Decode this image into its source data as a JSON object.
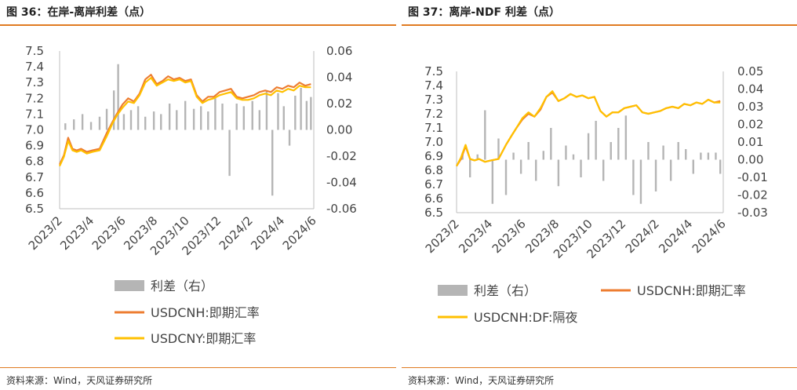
{
  "left": {
    "fig_title": "图 36：在岸-离岸利差（点）",
    "source": "资料来源：Wind，天风证券研究所",
    "legend": [
      "利差（右）",
      "USDCNH:即期汇率",
      "USDCNY:即期汇率"
    ]
  },
  "right": {
    "fig_title": "图 37：离岸-NDF 利差（点）",
    "source": "资料来源：Wind，天风证券研究所",
    "legend": [
      "利差（右）",
      "USDCNH:即期汇率",
      "USDCNH:DF:隔夜"
    ]
  },
  "colors": {
    "spread": "#b5b5b5",
    "series1": "#ed7d31",
    "series2": "#ffc000",
    "accent": "#e07b22"
  },
  "chart_data": [
    {
      "type": "line",
      "x_ticks": [
        "2023/2",
        "2023/4",
        "2023/6",
        "2023/8",
        "2023/10",
        "2023/12",
        "2024/2",
        "2024/4",
        "2024/6"
      ],
      "y_left_ticks": [
        "7.5",
        "7.4",
        "7.3",
        "7.2",
        "7.1",
        "7.0",
        "6.9",
        "6.8",
        "6.7",
        "6.6",
        "6.5"
      ],
      "y_right_ticks": [
        "0.06",
        "0.04",
        "0.02",
        "0.00",
        "-0.02",
        "-0.04",
        "-0.06"
      ],
      "ylim_left": [
        6.5,
        7.5
      ],
      "ylim_right": [
        -0.06,
        0.06
      ],
      "xlim": [
        0,
        17.8
      ],
      "series": [
        {
          "name": "利差（右）",
          "axis": "right",
          "kind": "bar",
          "x": [
            0.4,
            1.0,
            1.6,
            2.2,
            2.8,
            3.3,
            3.8,
            4.1,
            4.5,
            5.0,
            5.5,
            6.0,
            6.6,
            7.1,
            7.7,
            8.2,
            8.8,
            9.4,
            9.9,
            10.4,
            10.9,
            11.4,
            11.9,
            12.4,
            12.9,
            13.5,
            14.0,
            14.5,
            14.9,
            15.3,
            15.7,
            16.1,
            16.5,
            16.9,
            17.3,
            17.6
          ],
          "values": [
            0.005,
            0.008,
            0.012,
            0.006,
            0.01,
            0.016,
            0.03,
            0.05,
            0.012,
            0.015,
            0.018,
            0.01,
            0.014,
            0.012,
            0.02,
            0.015,
            0.022,
            0.016,
            0.018,
            0.014,
            0.025,
            0.02,
            -0.035,
            0.02,
            0.018,
            0.022,
            0.015,
            0.03,
            -0.05,
            0.028,
            0.018,
            -0.012,
            0.026,
            0.032,
            0.022,
            0.025
          ]
        },
        {
          "name": "USDCNH:即期汇率",
          "axis": "left",
          "x": [
            0,
            0.3,
            0.6,
            0.9,
            1.2,
            1.5,
            1.9,
            2.3,
            2.8,
            3.3,
            3.7,
            4.0,
            4.4,
            4.8,
            5.2,
            5.6,
            6.0,
            6.4,
            6.8,
            7.2,
            7.6,
            8.0,
            8.4,
            8.8,
            9.2,
            9.6,
            10.0,
            10.4,
            10.8,
            11.2,
            11.6,
            12.0,
            12.4,
            12.8,
            13.2,
            13.6,
            14.0,
            14.4,
            14.8,
            15.2,
            15.6,
            16.0,
            16.4,
            16.8,
            17.2,
            17.6
          ],
          "values": [
            6.78,
            6.84,
            6.95,
            6.88,
            6.87,
            6.88,
            6.86,
            6.87,
            6.88,
            6.98,
            7.05,
            7.1,
            7.16,
            7.2,
            7.18,
            7.23,
            7.32,
            7.35,
            7.29,
            7.31,
            7.34,
            7.32,
            7.33,
            7.31,
            7.32,
            7.22,
            7.18,
            7.21,
            7.21,
            7.24,
            7.25,
            7.26,
            7.21,
            7.2,
            7.21,
            7.22,
            7.24,
            7.25,
            7.24,
            7.27,
            7.26,
            7.28,
            7.27,
            7.3,
            7.28,
            7.29
          ]
        },
        {
          "name": "USDCNY:即期汇率",
          "axis": "left",
          "x": [
            0,
            0.3,
            0.6,
            0.9,
            1.2,
            1.5,
            1.9,
            2.3,
            2.8,
            3.3,
            3.7,
            4.0,
            4.4,
            4.8,
            5.2,
            5.6,
            6.0,
            6.4,
            6.8,
            7.2,
            7.6,
            8.0,
            8.4,
            8.8,
            9.2,
            9.6,
            10.0,
            10.4,
            10.8,
            11.2,
            11.6,
            12.0,
            12.4,
            12.8,
            13.2,
            13.6,
            14.0,
            14.4,
            14.8,
            15.2,
            15.6,
            16.0,
            16.4,
            16.8,
            17.2,
            17.6
          ],
          "values": [
            6.77,
            6.83,
            6.93,
            6.87,
            6.86,
            6.87,
            6.85,
            6.86,
            6.87,
            6.96,
            7.04,
            7.09,
            7.14,
            7.18,
            7.17,
            7.22,
            7.3,
            7.33,
            7.28,
            7.3,
            7.32,
            7.31,
            7.32,
            7.3,
            7.31,
            7.21,
            7.17,
            7.19,
            7.2,
            7.22,
            7.23,
            7.24,
            7.2,
            7.19,
            7.19,
            7.2,
            7.22,
            7.23,
            7.22,
            7.25,
            7.24,
            7.26,
            7.25,
            7.28,
            7.27,
            7.27
          ]
        }
      ]
    },
    {
      "type": "line",
      "x_ticks": [
        "2023/2",
        "2023/4",
        "2023/6",
        "2023/8",
        "2023/10",
        "2023/12",
        "2024/2",
        "2024/4",
        "2024/6"
      ],
      "y_left_ticks": [
        "7.5",
        "7.4",
        "7.3",
        "7.2",
        "7.1",
        "7.0",
        "6.9",
        "6.8",
        "6.7",
        "6.6",
        "6.5"
      ],
      "y_right_ticks": [
        "0.05",
        "0.04",
        "0.03",
        "0.02",
        "0.01",
        "0.00",
        "-0.01",
        "-0.02",
        "-0.03"
      ],
      "ylim_left": [
        6.5,
        7.5
      ],
      "ylim_right": [
        -0.03,
        0.05
      ],
      "xlim": [
        0,
        17.8
      ],
      "series": [
        {
          "name": "利差（右）",
          "axis": "right",
          "kind": "bar",
          "x": [
            0.4,
            0.9,
            1.4,
            1.9,
            2.4,
            2.8,
            3.3,
            3.8,
            4.3,
            4.8,
            5.3,
            5.8,
            6.3,
            6.8,
            7.3,
            7.8,
            8.3,
            8.8,
            9.3,
            9.8,
            10.3,
            10.8,
            11.3,
            11.8,
            12.3,
            12.8,
            13.3,
            13.8,
            14.3,
            14.8,
            15.3,
            15.8,
            16.3,
            16.8,
            17.3,
            17.6
          ],
          "values": [
            0.004,
            -0.01,
            0.003,
            0.028,
            -0.025,
            0.012,
            -0.02,
            0.004,
            -0.008,
            0.01,
            -0.012,
            0.005,
            0.018,
            -0.015,
            0.008,
            0.003,
            -0.01,
            0.015,
            0.022,
            -0.012,
            0.01,
            0.018,
            0.025,
            -0.02,
            -0.025,
            0.01,
            -0.018,
            0.008,
            -0.012,
            0.01,
            0.006,
            -0.008,
            0.004,
            0.004,
            0.004,
            -0.008
          ]
        },
        {
          "name": "USDCNH:即期汇率",
          "axis": "left",
          "x": [
            0,
            0.3,
            0.6,
            0.9,
            1.2,
            1.5,
            1.9,
            2.3,
            2.8,
            3.3,
            3.7,
            4.0,
            4.4,
            4.8,
            5.2,
            5.6,
            6.0,
            6.4,
            6.8,
            7.2,
            7.6,
            8.0,
            8.4,
            8.8,
            9.2,
            9.6,
            10.0,
            10.4,
            10.8,
            11.2,
            11.6,
            12.0,
            12.4,
            12.8,
            13.2,
            13.6,
            14.0,
            14.4,
            14.8,
            15.2,
            15.6,
            16.0,
            16.4,
            16.8,
            17.2,
            17.6
          ],
          "values": [
            6.83,
            6.88,
            6.97,
            6.88,
            6.87,
            6.88,
            6.86,
            6.87,
            6.88,
            6.98,
            7.05,
            7.1,
            7.16,
            7.2,
            7.18,
            7.23,
            7.32,
            7.35,
            7.29,
            7.31,
            7.34,
            7.32,
            7.33,
            7.31,
            7.32,
            7.22,
            7.18,
            7.21,
            7.21,
            7.24,
            7.25,
            7.26,
            7.21,
            7.2,
            7.21,
            7.22,
            7.24,
            7.25,
            7.24,
            7.27,
            7.26,
            7.28,
            7.27,
            7.3,
            7.28,
            7.29
          ]
        },
        {
          "name": "USDCNH:DF:隔夜",
          "axis": "left",
          "x": [
            0,
            0.3,
            0.6,
            0.9,
            1.2,
            1.5,
            1.9,
            2.3,
            2.8,
            3.3,
            3.7,
            4.0,
            4.4,
            4.8,
            5.2,
            5.6,
            6.0,
            6.4,
            6.8,
            7.2,
            7.6,
            8.0,
            8.4,
            8.8,
            9.2,
            9.6,
            10.0,
            10.4,
            10.8,
            11.2,
            11.6,
            12.0,
            12.4,
            12.8,
            13.2,
            13.6,
            14.0,
            14.4,
            14.8,
            15.2,
            15.6,
            16.0,
            16.4,
            16.8,
            17.2,
            17.6
          ],
          "values": [
            6.83,
            6.89,
            6.98,
            6.88,
            6.87,
            6.88,
            6.86,
            6.87,
            6.88,
            6.98,
            7.05,
            7.1,
            7.17,
            7.21,
            7.18,
            7.24,
            7.32,
            7.36,
            7.29,
            7.31,
            7.34,
            7.32,
            7.33,
            7.31,
            7.32,
            7.22,
            7.18,
            7.21,
            7.21,
            7.24,
            7.25,
            7.26,
            7.21,
            7.2,
            7.21,
            7.22,
            7.24,
            7.25,
            7.24,
            7.27,
            7.26,
            7.28,
            7.27,
            7.3,
            7.28,
            7.28
          ]
        }
      ]
    }
  ]
}
